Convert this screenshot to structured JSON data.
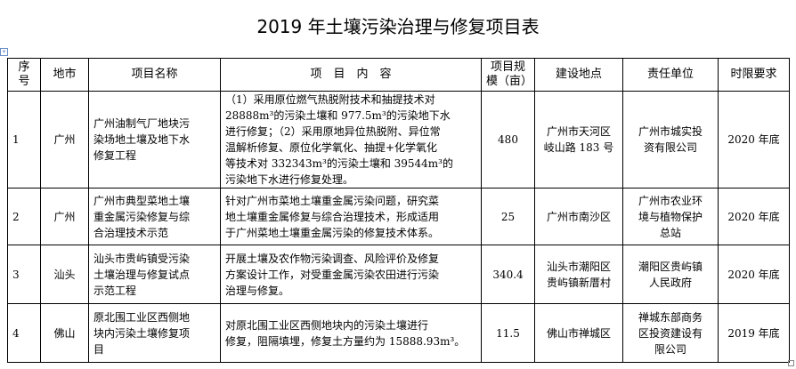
{
  "title": "2019 年土壤污染治理与修复项目表",
  "headers": [
    "序\n号",
    "地市",
    "项目名称",
    "项　目　内　容",
    "项目规\n模（亩）",
    "建设地点",
    "责任单位",
    "时限要求"
  ],
  "rows": [
    {
      "no": "1",
      "city": "广州",
      "name": "广州油制气厂地块污\n染场地土壤及地下水\n修复工程",
      "content": "（1）采用原位燃气热脱附技术和抽提技术对\n28888m³的污染土壤和 977.5m³的污染地下水\n进行修复；（2）采用原地异位热脱附、异位常\n温解析修复、原位化学氧化、抽提+化学氧化\n等技术对 332343m³的污染土壤和 39544m³的\n污染地下水进行修复处理。",
      "scale": "480",
      "location": "广州市天河区\n岐山路 183 号",
      "unit": "广州市城实投\n资有限公司",
      "deadline": "2020 年底"
    },
    {
      "no": "2",
      "city": "广州",
      "name": "广州市典型菜地土壤\n重金属污染修复与综\n合治理技术示范",
      "content": "针对广州市菜地土壤重金属污染问题，研究菜\n地土壤重金属修复与综合治理技术，形成适用\n于广州菜地土壤重金属污染的修复技术体系。",
      "scale": "25",
      "location": "广州市南沙区",
      "unit": "广州市农业环\n境与植物保护\n总站",
      "deadline": "2020 年底"
    },
    {
      "no": "3",
      "city": "汕头",
      "name": "汕头市贵屿镇受污染\n土壤治理与修复试点\n示范工程",
      "content": "开展土壤及农作物污染调查、风险评价及修复\n方案设计工作，对受重金属污染农田进行污染\n治理与修复。",
      "scale": "340.4",
      "location": "汕头市潮阳区\n贵屿镇新厝村",
      "unit": "潮阳区贵屿镇\n人民政府",
      "deadline": "2020 年底"
    },
    {
      "no": "4",
      "city": "佛山",
      "name": "原北围工业区西侧地\n块内污染土壤修复项\n目",
      "content": "对原北围工业区西侧地块内的污染土壤进行\n修复，阻隔填埋，修复土方量约为 15888.93m³。",
      "scale": "11.5",
      "location": "佛山市禅城区",
      "unit": "禅城东部商务\n区投资建设有\n限公司",
      "deadline": "2019 年底"
    }
  ]
}
